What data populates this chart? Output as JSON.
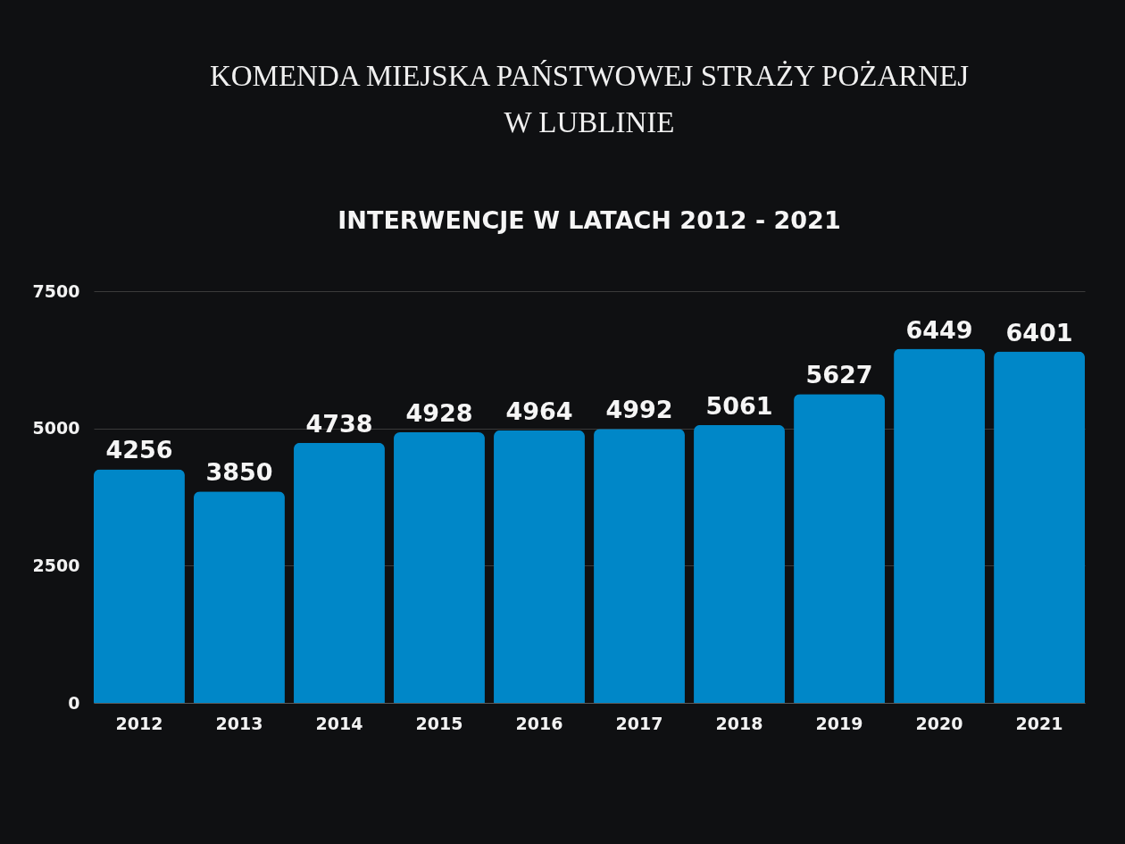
{
  "chart_data": {
    "type": "bar",
    "title": "KOMENDA MIEJSKA PAŃSTWOWEJ STRAŻY POŻARNEJ W LUBLINIE",
    "subtitle": "INTERWENCJE W LATACH 2012 - 2021",
    "categories": [
      "2012",
      "2013",
      "2014",
      "2015",
      "2016",
      "2017",
      "2018",
      "2019",
      "2020",
      "2021"
    ],
    "values": [
      4256,
      3850,
      4738,
      4928,
      4964,
      4992,
      5061,
      5627,
      6449,
      6401
    ],
    "color": "#0087c8",
    "ylim": [
      0,
      7500
    ],
    "yticks": [
      0,
      2500,
      5000,
      7500
    ],
    "grid": "y",
    "data_labels": true
  }
}
